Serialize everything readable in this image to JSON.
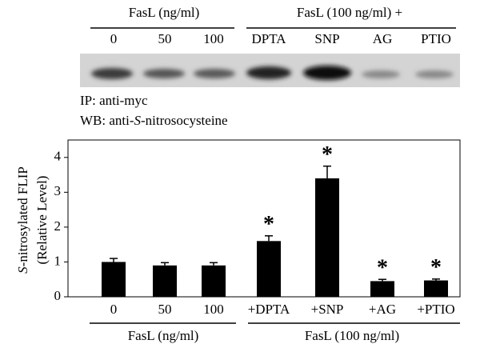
{
  "blot": {
    "group_labels": [
      "FasL (ng/ml)",
      "FasL (100 ng/ml) +"
    ],
    "lanes": [
      "0",
      "50",
      "100",
      "DPTA",
      "SNP",
      "AG",
      "PTIO"
    ],
    "ip_label": "IP: anti-myc",
    "wb_label": [
      "WB: anti-",
      "S",
      "-nitrosocysteine"
    ]
  },
  "chart_data": {
    "type": "bar",
    "ylabel": [
      "S",
      "-nitrosylated FLIP"
    ],
    "ylabel2": "(Relative Level)",
    "categories": [
      "0",
      "50",
      "100",
      "+DPTA",
      "+SNP",
      "+AG",
      "+PTIO"
    ],
    "values": [
      1.0,
      0.9,
      0.9,
      1.6,
      3.4,
      0.45,
      0.47
    ],
    "errors": [
      0.1,
      0.08,
      0.08,
      0.15,
      0.35,
      0.05,
      0.04
    ],
    "significance": [
      null,
      null,
      null,
      "*",
      "*",
      "*",
      "*"
    ],
    "group_labels": [
      "FasL (ng/ml)",
      "FasL (100 ng/ml)"
    ],
    "color": "#000000",
    "ylim": [
      0,
      4.5
    ],
    "yticks": [
      0,
      1,
      2,
      3,
      4
    ]
  }
}
